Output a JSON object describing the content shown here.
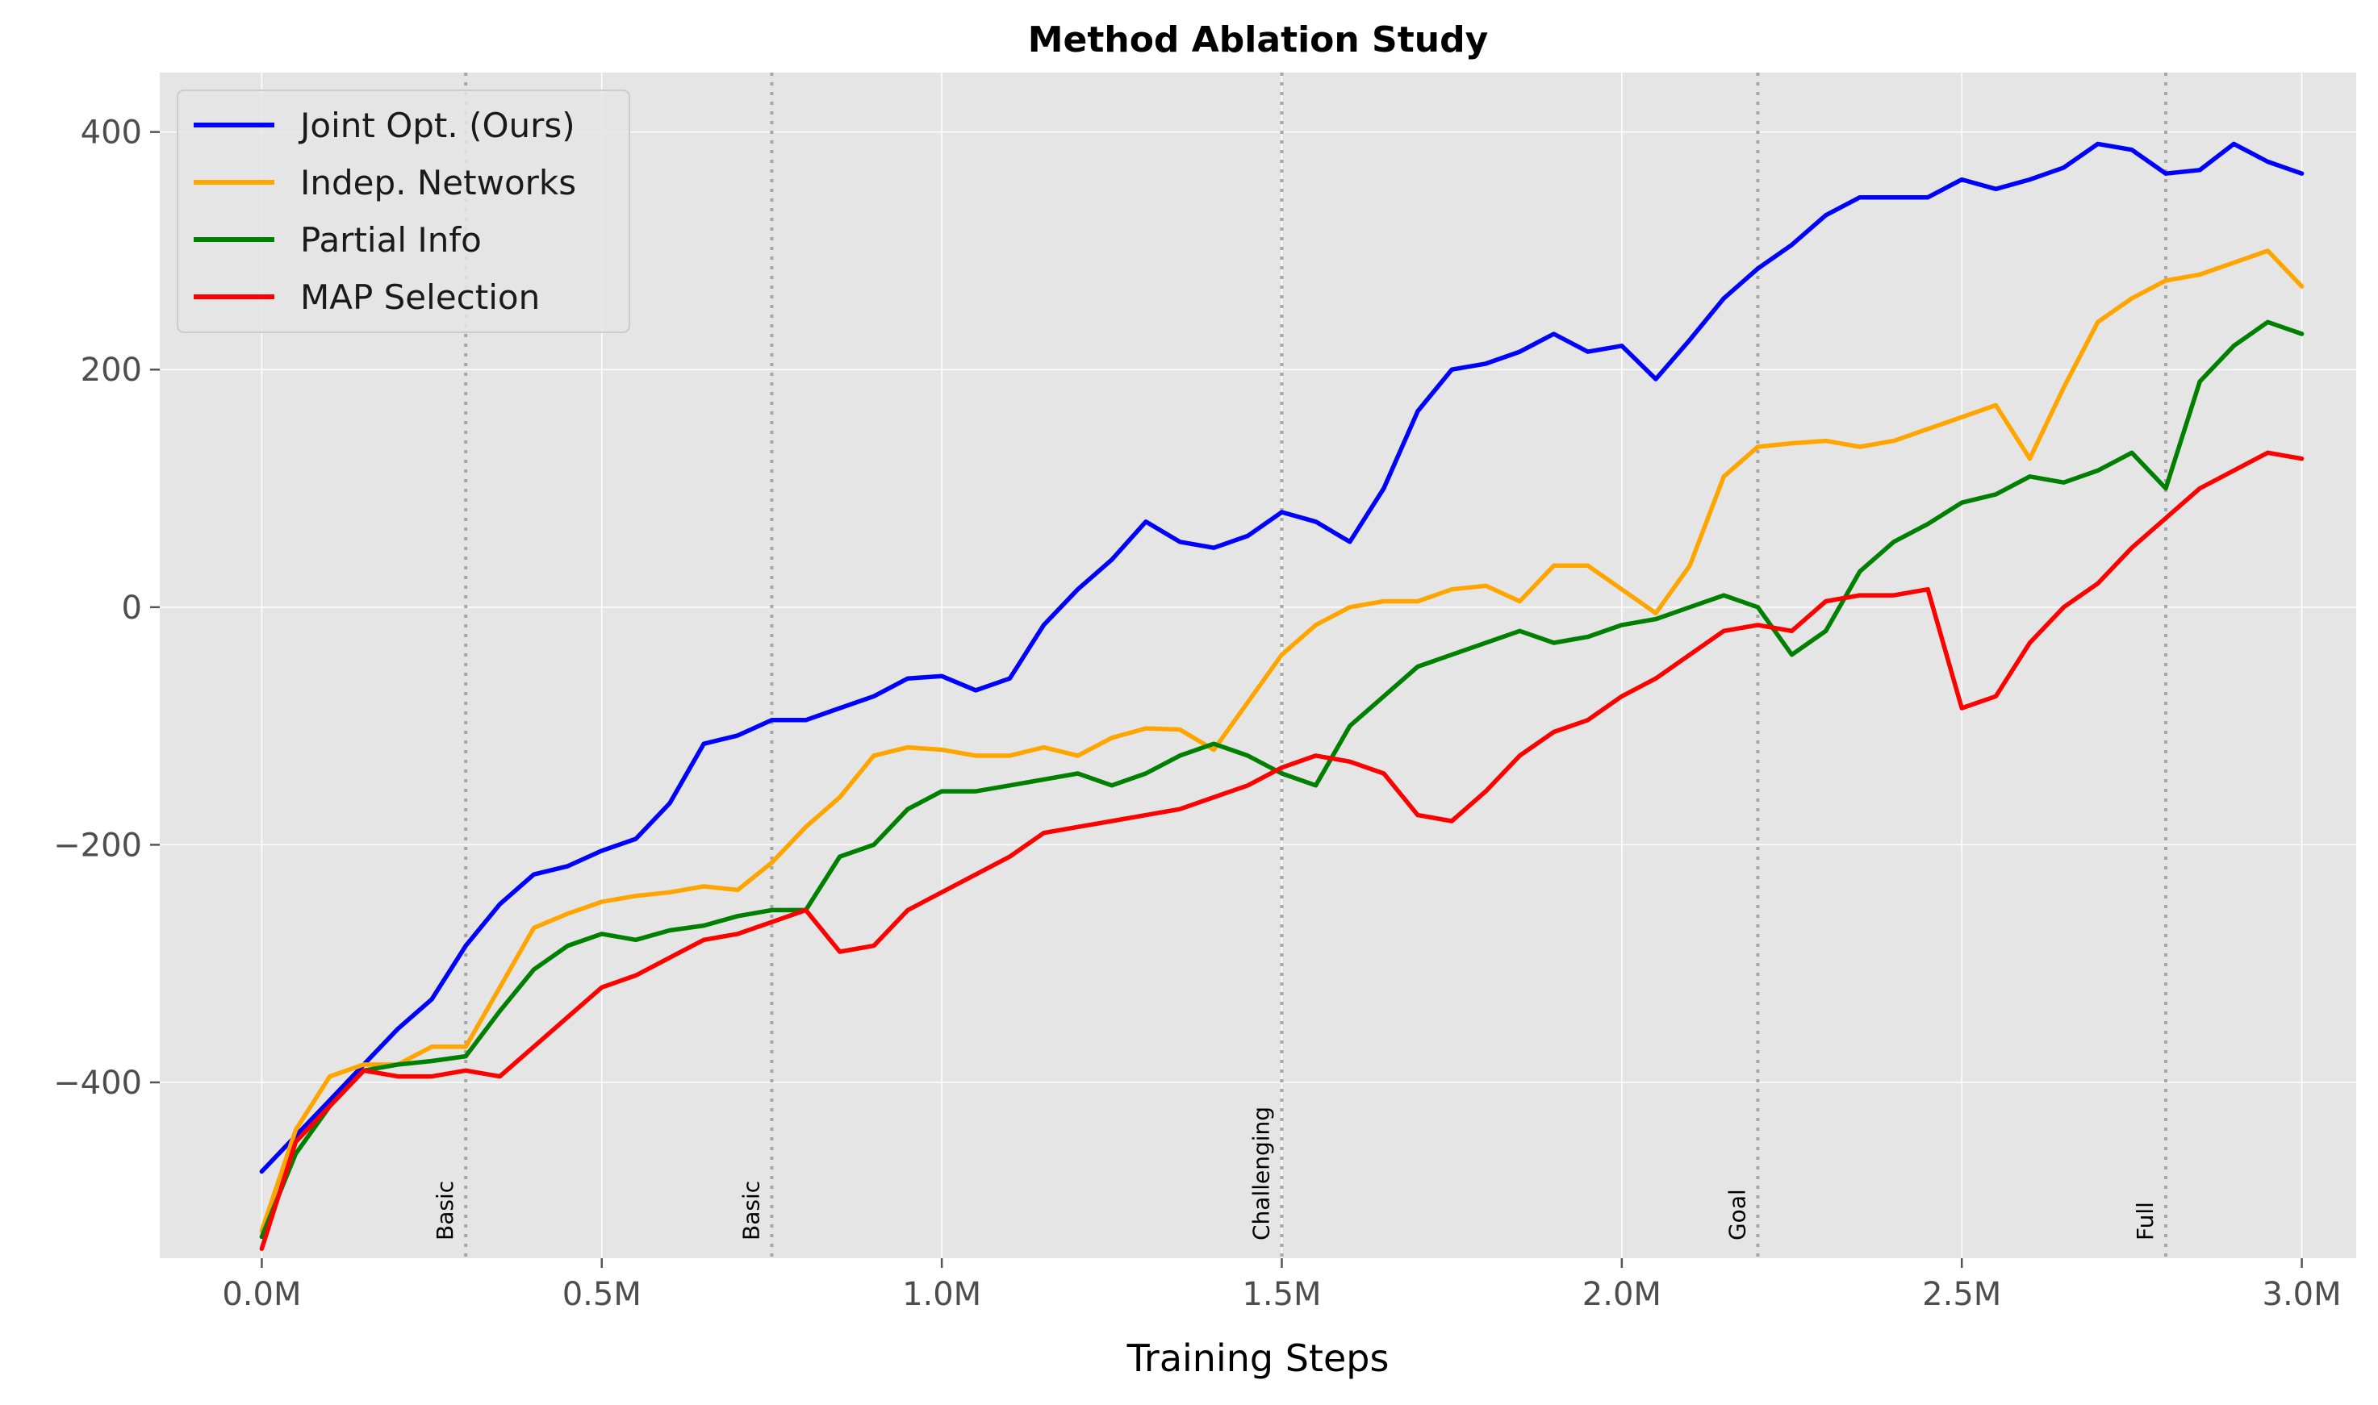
{
  "chart_data": {
    "type": "line",
    "title": "Method Ablation Study",
    "xlabel": "Training Steps",
    "ylabel": "",
    "xlim": [
      -0.15,
      3.08
    ],
    "ylim": [
      -548,
      450
    ],
    "x_unit": "M steps",
    "x_ticks": [
      0,
      0.5,
      1.0,
      1.5,
      2.0,
      2.5,
      3.0
    ],
    "x_tick_labels": [
      "0.0M",
      "0.5M",
      "1.0M",
      "1.5M",
      "2.0M",
      "2.5M",
      "3.0M"
    ],
    "y_ticks": [
      -400,
      -200,
      0,
      200,
      400
    ],
    "y_tick_labels": [
      "−400",
      "−200",
      "0",
      "200",
      "400"
    ],
    "grid": true,
    "background": "#e5e5e5",
    "legend_position": "top-left",
    "stage_markers": [
      {
        "x": 0.3,
        "label": "Basic"
      },
      {
        "x": 0.75,
        "label": "Basic"
      },
      {
        "x": 1.5,
        "label": "Challenging"
      },
      {
        "x": 2.2,
        "label": "Goal"
      },
      {
        "x": 2.8,
        "label": "Full"
      }
    ],
    "series": [
      {
        "name": "Joint Opt. (Ours)",
        "color": "#0000ff",
        "x": [
          0,
          0.05,
          0.1,
          0.15,
          0.2,
          0.25,
          0.3,
          0.35,
          0.4,
          0.45,
          0.5,
          0.55,
          0.6,
          0.65,
          0.7,
          0.75,
          0.8,
          0.85,
          0.9,
          0.95,
          1.0,
          1.05,
          1.1,
          1.15,
          1.2,
          1.25,
          1.3,
          1.35,
          1.4,
          1.45,
          1.5,
          1.55,
          1.6,
          1.65,
          1.7,
          1.75,
          1.8,
          1.85,
          1.9,
          1.95,
          2.0,
          2.05,
          2.1,
          2.15,
          2.2,
          2.25,
          2.3,
          2.35,
          2.4,
          2.45,
          2.5,
          2.55,
          2.6,
          2.65,
          2.7,
          2.75,
          2.8,
          2.85,
          2.9,
          2.95,
          3.0
        ],
        "y": [
          -475,
          -445,
          -415,
          -385,
          -355,
          -330,
          -285,
          -250,
          -225,
          -218,
          -205,
          -195,
          -165,
          -115,
          -108,
          -95,
          -95,
          -85,
          -75,
          -60,
          -58,
          -70,
          -60,
          -15,
          15,
          40,
          72,
          55,
          50,
          60,
          80,
          72,
          55,
          100,
          165,
          200,
          205,
          215,
          230,
          215,
          220,
          192,
          225,
          260,
          285,
          305,
          330,
          345,
          345,
          345,
          360,
          352,
          360,
          370,
          390,
          385,
          365,
          368,
          390,
          375,
          365
        ]
      },
      {
        "name": "Indep. Networks",
        "color": "#ffa500",
        "x": [
          0,
          0.05,
          0.1,
          0.15,
          0.2,
          0.25,
          0.3,
          0.35,
          0.4,
          0.45,
          0.5,
          0.55,
          0.6,
          0.65,
          0.7,
          0.75,
          0.8,
          0.85,
          0.9,
          0.95,
          1.0,
          1.05,
          1.1,
          1.15,
          1.2,
          1.25,
          1.3,
          1.35,
          1.4,
          1.45,
          1.5,
          1.55,
          1.6,
          1.65,
          1.7,
          1.75,
          1.8,
          1.85,
          1.9,
          1.95,
          2.0,
          2.05,
          2.1,
          2.15,
          2.2,
          2.25,
          2.3,
          2.35,
          2.4,
          2.45,
          2.5,
          2.55,
          2.6,
          2.65,
          2.7,
          2.75,
          2.8,
          2.85,
          2.9,
          2.95,
          3.0
        ],
        "y": [
          -525,
          -440,
          -395,
          -385,
          -385,
          -370,
          -370,
          -320,
          -270,
          -258,
          -248,
          -243,
          -240,
          -235,
          -238,
          -215,
          -185,
          -160,
          -125,
          -118,
          -120,
          -125,
          -125,
          -118,
          -125,
          -110,
          -102,
          -103,
          -120,
          -80,
          -40,
          -15,
          0,
          5,
          5,
          15,
          18,
          5,
          35,
          35,
          15,
          -5,
          35,
          110,
          135,
          138,
          140,
          135,
          140,
          150,
          160,
          170,
          125,
          185,
          240,
          260,
          275,
          280,
          290,
          300,
          270
        ]
      },
      {
        "name": "Partial Info",
        "color": "#008000",
        "x": [
          0,
          0.05,
          0.1,
          0.15,
          0.2,
          0.25,
          0.3,
          0.35,
          0.4,
          0.45,
          0.5,
          0.55,
          0.6,
          0.65,
          0.7,
          0.75,
          0.8,
          0.85,
          0.9,
          0.95,
          1.0,
          1.05,
          1.1,
          1.15,
          1.2,
          1.25,
          1.3,
          1.35,
          1.4,
          1.45,
          1.5,
          1.55,
          1.6,
          1.65,
          1.7,
          1.75,
          1.8,
          1.85,
          1.9,
          1.95,
          2.0,
          2.05,
          2.1,
          2.15,
          2.2,
          2.25,
          2.3,
          2.35,
          2.4,
          2.45,
          2.5,
          2.55,
          2.6,
          2.65,
          2.7,
          2.75,
          2.8,
          2.85,
          2.9,
          2.95,
          3.0
        ],
        "y": [
          -530,
          -460,
          -420,
          -390,
          -385,
          -382,
          -378,
          -340,
          -305,
          -285,
          -275,
          -280,
          -272,
          -268,
          -260,
          -255,
          -255,
          -210,
          -200,
          -170,
          -155,
          -155,
          -150,
          -145,
          -140,
          -150,
          -140,
          -125,
          -115,
          -125,
          -140,
          -150,
          -100,
          -75,
          -50,
          -40,
          -30,
          -20,
          -30,
          -25,
          -15,
          -10,
          0,
          10,
          0,
          -40,
          -20,
          30,
          55,
          70,
          88,
          95,
          110,
          105,
          115,
          130,
          100,
          190,
          220,
          240,
          230
        ]
      },
      {
        "name": "MAP Selection",
        "color": "#ff0000",
        "x": [
          0,
          0.05,
          0.1,
          0.15,
          0.2,
          0.25,
          0.3,
          0.35,
          0.4,
          0.45,
          0.5,
          0.55,
          0.6,
          0.65,
          0.7,
          0.75,
          0.8,
          0.85,
          0.9,
          0.95,
          1.0,
          1.05,
          1.1,
          1.15,
          1.2,
          1.25,
          1.3,
          1.35,
          1.4,
          1.45,
          1.5,
          1.55,
          1.6,
          1.65,
          1.7,
          1.75,
          1.8,
          1.85,
          1.9,
          1.95,
          2.0,
          2.05,
          2.1,
          2.15,
          2.2,
          2.25,
          2.3,
          2.35,
          2.4,
          2.45,
          2.5,
          2.55,
          2.6,
          2.65,
          2.7,
          2.75,
          2.8,
          2.85,
          2.9,
          2.95,
          3.0
        ],
        "y": [
          -540,
          -450,
          -420,
          -390,
          -395,
          -395,
          -390,
          -395,
          -370,
          -345,
          -320,
          -310,
          -295,
          -280,
          -275,
          -265,
          -255,
          -290,
          -285,
          -255,
          -240,
          -225,
          -210,
          -190,
          -185,
          -180,
          -175,
          -170,
          -160,
          -150,
          -135,
          -125,
          -130,
          -140,
          -175,
          -180,
          -155,
          -125,
          -105,
          -95,
          -75,
          -60,
          -40,
          -20,
          -15,
          -20,
          5,
          10,
          10,
          15,
          -85,
          -75,
          -30,
          0,
          20,
          50,
          75,
          100,
          115,
          130,
          125
        ]
      }
    ]
  }
}
